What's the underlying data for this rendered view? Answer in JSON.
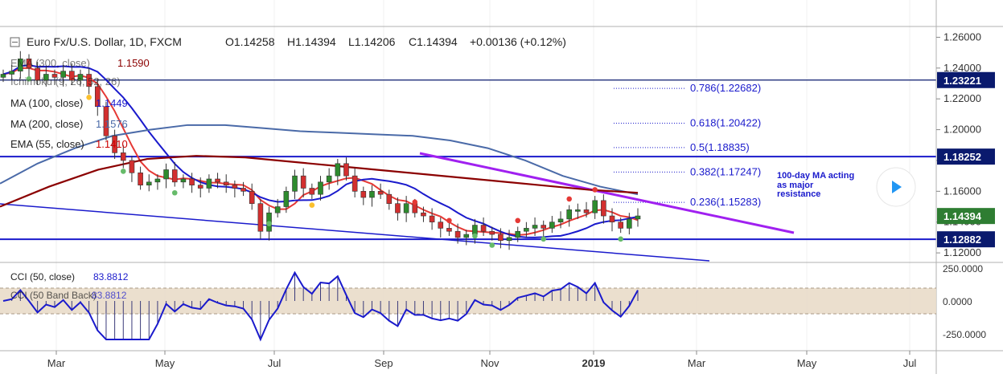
{
  "header": {
    "symbol": "Euro Fx/U.S. Dollar, 1D, FXCM",
    "open": "O1.14258",
    "high": "H1.14394",
    "low": "L1.14206",
    "close": "C1.14394",
    "change": "+0.00136 (+0.12%)"
  },
  "indicators": [
    {
      "label": "EMA (300, close)",
      "value": "1.1590",
      "color": "#8b0000"
    },
    {
      "label": "Ichimoku (9, 26, 52, 26)",
      "value": "",
      "color": "#888888"
    },
    {
      "label": "MA (100, close)",
      "value": "1.1449",
      "color": "#1a1acc"
    },
    {
      "label": "MA (200, close)",
      "value": "1.1576",
      "color": "#4a6aa8"
    },
    {
      "label": "EMA (55, close)",
      "value": "1.1410",
      "color": "#cc0000"
    }
  ],
  "fib_levels": [
    {
      "label": "0.786(1.22682)",
      "price": 1.22682
    },
    {
      "label": "0.618(1.20422)",
      "price": 1.20422
    },
    {
      "label": "0.5(1.18835)",
      "price": 1.18835
    },
    {
      "label": "0.382(1.17247)",
      "price": 1.17247
    },
    {
      "label": "0.236(1.15283)",
      "price": 1.15283
    }
  ],
  "annotation": [
    "100-day MA acting",
    "as major",
    "resistance"
  ],
  "price_badges": [
    {
      "label": "1.23221",
      "price": 1.23221,
      "color": "#0a1a6e"
    },
    {
      "label": "1.18252",
      "price": 1.18252,
      "color": "#0a1a6e"
    },
    {
      "label": "1.14394",
      "price": 1.14394,
      "color": "#2e7d32"
    },
    {
      "label": "1.12882",
      "price": 1.12882,
      "color": "#0a1a6e"
    }
  ],
  "cci": {
    "label": "CCI (50, close)",
    "value": "83.8812",
    "label2": "CCI (50 Band Back)",
    "value2": "83.8812",
    "ticks": [
      "250.0000",
      "0.0000",
      "-250.0000"
    ]
  },
  "chart_data": {
    "type": "candlestick",
    "price_axis": {
      "ticks": [
        "1.26000",
        "1.24000",
        "1.22000",
        "1.20000",
        "1.18000",
        "1.16000",
        "1.14000",
        "1.12000"
      ],
      "range": [
        1.1138,
        1.267
      ]
    },
    "x_axis": {
      "ticks": [
        "Mar",
        "May",
        "Jul",
        "Sep",
        "Nov",
        "2019",
        "Mar",
        "May",
        "Jul"
      ]
    },
    "horizontal_lines": [
      1.23221,
      1.18252,
      1.12882
    ],
    "close_series": [
      1.236,
      1.238,
      1.246,
      1.24,
      1.232,
      1.236,
      1.234,
      1.238,
      1.232,
      1.236,
      1.228,
      1.215,
      1.196,
      1.185,
      1.18,
      1.172,
      1.164,
      1.166,
      1.168,
      1.174,
      1.166,
      1.168,
      1.164,
      1.162,
      1.168,
      1.166,
      1.164,
      1.162,
      1.16,
      1.152,
      1.134,
      1.146,
      1.15,
      1.16,
      1.17,
      1.162,
      1.158,
      1.166,
      1.17,
      1.178,
      1.17,
      1.16,
      1.156,
      1.16,
      1.158,
      1.152,
      1.146,
      1.152,
      1.146,
      1.144,
      1.14,
      1.136,
      1.134,
      1.13,
      1.132,
      1.138,
      1.134,
      1.132,
      1.128,
      1.13,
      1.134,
      1.136,
      1.138,
      1.136,
      1.14,
      1.142,
      1.148,
      1.148,
      1.146,
      1.154,
      1.144,
      1.14,
      1.136,
      1.142,
      1.144
    ]
  }
}
